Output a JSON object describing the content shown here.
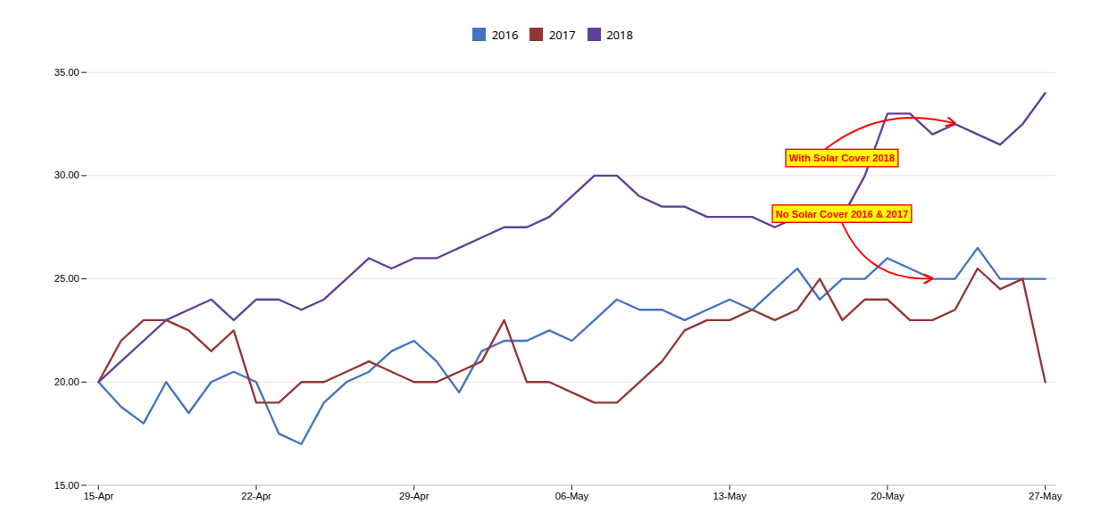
{
  "chart_data": {
    "type": "line",
    "categories": [
      "15-Apr",
      null,
      null,
      null,
      null,
      null,
      null,
      "22-Apr",
      null,
      null,
      null,
      null,
      null,
      null,
      "29-Apr",
      null,
      null,
      null,
      null,
      null,
      null,
      "06-May",
      null,
      null,
      null,
      null,
      null,
      null,
      "13-May",
      null,
      null,
      null,
      null,
      null,
      null,
      "20-May",
      null,
      null,
      null,
      null,
      null,
      null,
      "27-May"
    ],
    "series": [
      {
        "name": "2016",
        "color": "#4472C4",
        "values": [
          20.0,
          18.8,
          18.0,
          20.0,
          18.5,
          20.0,
          20.5,
          20.0,
          17.5,
          17.0,
          19.0,
          20.0,
          20.5,
          21.5,
          22.0,
          21.0,
          19.5,
          21.5,
          22.0,
          22.0,
          22.5,
          22.0,
          23.0,
          24.0,
          23.5,
          23.5,
          23.0,
          23.5,
          24.0,
          23.5,
          24.5,
          25.5,
          24.0,
          25.0,
          25.0,
          26.0,
          25.5,
          25.0,
          25.0,
          26.5,
          25.0,
          25.0,
          25.0
        ]
      },
      {
        "name": "2017",
        "color": "#943634",
        "values": [
          20.0,
          22.0,
          23.0,
          23.0,
          22.5,
          21.5,
          22.5,
          19.0,
          19.0,
          20.0,
          20.0,
          20.5,
          21.0,
          20.5,
          20.0,
          20.0,
          20.5,
          21.0,
          23.0,
          20.0,
          20.0,
          19.5,
          19.0,
          19.0,
          20.0,
          21.0,
          22.5,
          23.0,
          23.0,
          23.5,
          23.0,
          23.5,
          25.0,
          23.0,
          24.0,
          24.0,
          23.0,
          23.0,
          23.5,
          25.5,
          24.5,
          25.0,
          20.0
        ]
      },
      {
        "name": "2018",
        "color": "#604098",
        "values": [
          20.0,
          21.0,
          22.0,
          23.0,
          23.5,
          24.0,
          23.0,
          24.0,
          24.0,
          23.5,
          24.0,
          25.0,
          26.0,
          25.5,
          26.0,
          26.0,
          26.5,
          27.0,
          27.5,
          27.5,
          28.0,
          29.0,
          30.0,
          30.0,
          29.0,
          28.5,
          28.5,
          28.0,
          28.0,
          28.0,
          27.5,
          28.0,
          28.0,
          28.0,
          30.0,
          33.0,
          33.0,
          32.0,
          32.5,
          32.0,
          31.5,
          32.5,
          34.0
        ]
      }
    ],
    "ylim": [
      15.0,
      35.0
    ],
    "yticks": [
      {
        "value": 15.0,
        "label": "15.00"
      },
      {
        "value": 20.0,
        "label": "20.00"
      },
      {
        "value": 25.0,
        "label": "25.00"
      },
      {
        "value": 30.0,
        "label": "30.00"
      },
      {
        "value": 35.0,
        "label": "35.00"
      }
    ],
    "grid": true,
    "legend": "upper center",
    "annotations": [
      "With Solar Cover 2018",
      "No Solar Cover 2016 & 2017"
    ]
  }
}
